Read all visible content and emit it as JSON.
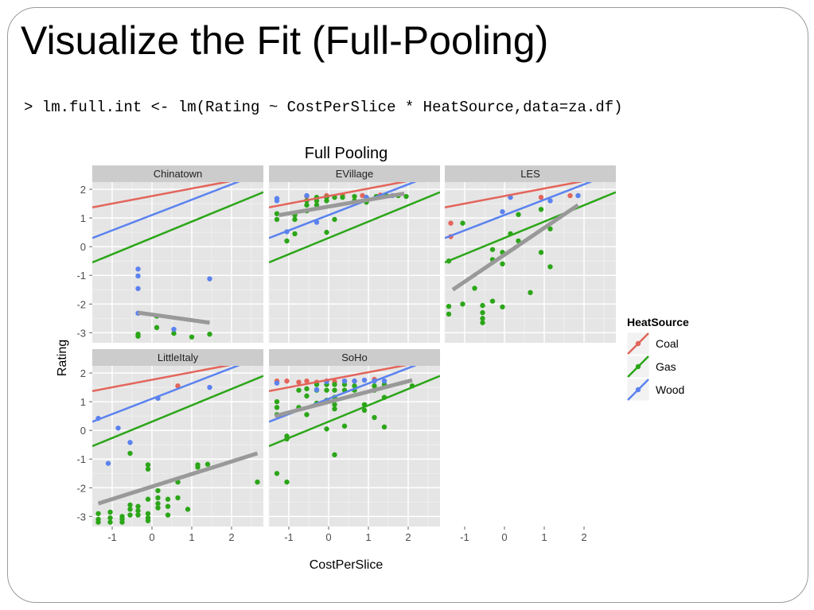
{
  "slide": {
    "title": "Visualize the Fit (Full-Pooling)",
    "code": "> lm.full.int <- lm(Rating ~ CostPerSlice * HeatSource,data=za.df)"
  },
  "chart_data": {
    "type": "scatter",
    "title": "Full Pooling",
    "xlabel": "CostPerSlice",
    "ylabel": "Rating",
    "xlim": [
      -1.5,
      2.8
    ],
    "ylim": [
      -3.35,
      2.25
    ],
    "x_ticks": [
      -1,
      0,
      1,
      2
    ],
    "y_ticks": [
      -3,
      -2,
      -1,
      0,
      1,
      2
    ],
    "grid": true,
    "legend": {
      "title": "HeatSource",
      "position": "right",
      "entries": [
        {
          "name": "Coal",
          "color": "#e3655b"
        },
        {
          "name": "Gas",
          "color": "#2ca619"
        },
        {
          "name": "Wood",
          "color": "#5b82ef"
        }
      ]
    },
    "pooled_lines": [
      {
        "series": "Coal",
        "color": "#e3655b",
        "x": [
          -1.5,
          2.8
        ],
        "y": [
          1.37,
          2.5
        ]
      },
      {
        "series": "Gas",
        "color": "#2ca619",
        "x": [
          -1.5,
          2.8
        ],
        "y": [
          -0.55,
          1.9
        ]
      },
      {
        "series": "Wood",
        "color": "#5b82ef",
        "x": [
          -1.5,
          2.8
        ],
        "y": [
          0.3,
          2.6
        ]
      }
    ],
    "fit_color": "#999999",
    "panels": [
      {
        "name": "Chinatown",
        "fit": {
          "x": [
            -0.35,
            1.45
          ],
          "y": [
            -2.3,
            -2.65
          ]
        },
        "points": {
          "Coal": [],
          "Gas": [
            [
              -0.35,
              -3.05
            ],
            [
              -0.35,
              -3.12
            ],
            [
              0.12,
              -2.42
            ],
            [
              0.12,
              -2.82
            ],
            [
              0.55,
              -3.02
            ],
            [
              1.0,
              -3.15
            ],
            [
              1.45,
              -3.05
            ]
          ],
          "Wood": [
            [
              -0.35,
              -0.78
            ],
            [
              -0.35,
              -1.02
            ],
            [
              -0.35,
              -1.46
            ],
            [
              -0.35,
              -2.32
            ],
            [
              0.55,
              -2.88
            ],
            [
              1.45,
              -1.12
            ]
          ]
        }
      },
      {
        "name": "EVillage",
        "fit": {
          "x": [
            -1.25,
            1.9
          ],
          "y": [
            1.1,
            1.85
          ]
        },
        "points": {
          "Coal": [
            [
              -0.55,
              1.75
            ],
            [
              -0.05,
              1.78
            ],
            [
              0.35,
              1.8
            ],
            [
              0.85,
              1.78
            ],
            [
              1.3,
              1.8
            ]
          ],
          "Gas": [
            [
              -1.3,
              0.95
            ],
            [
              -1.3,
              1.15
            ],
            [
              -1.05,
              0.2
            ],
            [
              -0.85,
              0.45
            ],
            [
              -0.85,
              0.95
            ],
            [
              -0.85,
              1.1
            ],
            [
              -0.55,
              1.25
            ],
            [
              -0.55,
              1.45
            ],
            [
              -0.55,
              1.6
            ],
            [
              -0.3,
              1.45
            ],
            [
              -0.3,
              1.6
            ],
            [
              -0.3,
              1.72
            ],
            [
              -0.05,
              0.5
            ],
            [
              -0.05,
              1.6
            ],
            [
              -0.05,
              1.72
            ],
            [
              0.15,
              0.95
            ],
            [
              0.15,
              1.72
            ],
            [
              0.35,
              1.72
            ],
            [
              0.65,
              1.75
            ],
            [
              0.65,
              1.6
            ],
            [
              0.95,
              1.55
            ],
            [
              0.95,
              1.72
            ],
            [
              1.2,
              1.75
            ],
            [
              1.45,
              1.78
            ],
            [
              1.75,
              1.78
            ],
            [
              1.95,
              1.75
            ]
          ],
          "Wood": [
            [
              -1.3,
              1.6
            ],
            [
              -1.3,
              1.68
            ],
            [
              -1.05,
              0.52
            ],
            [
              -0.55,
              1.78
            ],
            [
              -0.3,
              0.85
            ],
            [
              0.95,
              1.72
            ],
            [
              1.6,
              1.78
            ]
          ]
        }
      },
      {
        "name": "LES",
        "fit": {
          "x": [
            -1.3,
            1.85
          ],
          "y": [
            -1.5,
            1.45
          ]
        },
        "points": {
          "Coal": [
            [
              -1.35,
              0.82
            ],
            [
              -1.35,
              0.35
            ],
            [
              0.92,
              1.72
            ],
            [
              1.65,
              1.78
            ]
          ],
          "Gas": [
            [
              -1.4,
              -0.5
            ],
            [
              -1.4,
              -2.08
            ],
            [
              -1.4,
              -2.35
            ],
            [
              -1.05,
              0.82
            ],
            [
              -1.05,
              -2.0
            ],
            [
              -0.75,
              -1.45
            ],
            [
              -0.55,
              -2.05
            ],
            [
              -0.55,
              -2.3
            ],
            [
              -0.55,
              -2.5
            ],
            [
              -0.55,
              -2.65
            ],
            [
              -0.3,
              -0.1
            ],
            [
              -0.3,
              -0.45
            ],
            [
              -0.3,
              -1.9
            ],
            [
              -0.05,
              -0.2
            ],
            [
              -0.05,
              -0.6
            ],
            [
              -0.05,
              -2.1
            ],
            [
              0.15,
              0.45
            ],
            [
              0.35,
              1.12
            ],
            [
              0.35,
              0.2
            ],
            [
              0.65,
              -1.6
            ],
            [
              0.92,
              -0.2
            ],
            [
              0.92,
              1.3
            ],
            [
              1.15,
              0.62
            ],
            [
              1.15,
              -0.7
            ]
          ],
          "Wood": [
            [
              -0.05,
              1.22
            ],
            [
              0.15,
              1.72
            ],
            [
              1.15,
              1.6
            ],
            [
              1.85,
              1.78
            ]
          ]
        }
      },
      {
        "name": "LittleItaly",
        "fit": {
          "x": [
            -1.35,
            2.65
          ],
          "y": [
            -2.55,
            -0.8
          ]
        },
        "points": {
          "Coal": [
            [
              0.65,
              1.55
            ]
          ],
          "Gas": [
            [
              -1.35,
              -2.9
            ],
            [
              -1.35,
              -3.1
            ],
            [
              -1.35,
              -3.2
            ],
            [
              -1.05,
              -2.85
            ],
            [
              -1.05,
              -3.05
            ],
            [
              -1.05,
              -3.2
            ],
            [
              -0.75,
              -3.0
            ],
            [
              -0.75,
              -3.1
            ],
            [
              -0.75,
              -3.2
            ],
            [
              -0.55,
              -0.8
            ],
            [
              -0.55,
              -2.6
            ],
            [
              -0.55,
              -2.75
            ],
            [
              -0.55,
              -2.95
            ],
            [
              -0.35,
              -2.65
            ],
            [
              -0.35,
              -2.8
            ],
            [
              -0.35,
              -2.95
            ],
            [
              -0.1,
              -1.2
            ],
            [
              -0.1,
              -1.35
            ],
            [
              -0.1,
              -2.4
            ],
            [
              -0.1,
              -2.9
            ],
            [
              -0.1,
              -3.05
            ],
            [
              -0.1,
              -3.15
            ],
            [
              0.15,
              -2.1
            ],
            [
              0.15,
              -2.35
            ],
            [
              0.15,
              -2.55
            ],
            [
              0.15,
              -2.7
            ],
            [
              0.4,
              -2.4
            ],
            [
              0.4,
              -2.65
            ],
            [
              0.4,
              -2.95
            ],
            [
              0.65,
              -1.8
            ],
            [
              0.65,
              -2.35
            ],
            [
              0.9,
              -2.75
            ],
            [
              1.15,
              -1.2
            ],
            [
              1.15,
              -1.28
            ],
            [
              1.4,
              -1.18
            ],
            [
              2.65,
              -1.8
            ]
          ],
          "Wood": [
            [
              -1.35,
              0.42
            ],
            [
              -1.1,
              -1.15
            ],
            [
              -0.85,
              0.08
            ],
            [
              -0.55,
              -0.42
            ],
            [
              0.15,
              1.12
            ],
            [
              1.45,
              1.5
            ]
          ]
        }
      },
      {
        "name": "SoHo",
        "fit": {
          "x": [
            -1.35,
            2.1
          ],
          "y": [
            0.5,
            1.75
          ]
        },
        "points": {
          "Coal": [
            [
              -1.3,
              1.72
            ],
            [
              -1.05,
              1.72
            ],
            [
              -0.75,
              1.68
            ],
            [
              -0.55,
              1.72
            ],
            [
              -0.3,
              1.68
            ],
            [
              -0.05,
              1.72
            ],
            [
              0.15,
              1.7
            ],
            [
              0.4,
              1.72
            ],
            [
              0.65,
              1.72
            ],
            [
              1.15,
              1.78
            ]
          ],
          "Gas": [
            [
              -1.3,
              0.55
            ],
            [
              -1.3,
              0.8
            ],
            [
              -1.3,
              1.0
            ],
            [
              -1.3,
              -1.5
            ],
            [
              -1.05,
              -0.2
            ],
            [
              -1.05,
              -0.3
            ],
            [
              -1.05,
              -1.8
            ],
            [
              -0.75,
              0.8
            ],
            [
              -0.75,
              1.4
            ],
            [
              -0.55,
              0.55
            ],
            [
              -0.55,
              1.2
            ],
            [
              -0.55,
              1.45
            ],
            [
              -0.3,
              1.4
            ],
            [
              -0.3,
              1.6
            ],
            [
              -0.3,
              0.95
            ],
            [
              -0.05,
              0.05
            ],
            [
              -0.05,
              1.05
            ],
            [
              -0.05,
              1.4
            ],
            [
              -0.05,
              1.6
            ],
            [
              0.15,
              0.75
            ],
            [
              0.15,
              0.9
            ],
            [
              0.15,
              1.15
            ],
            [
              0.15,
              1.4
            ],
            [
              0.15,
              1.6
            ],
            [
              0.15,
              -0.85
            ],
            [
              0.4,
              1.4
            ],
            [
              0.4,
              1.6
            ],
            [
              0.4,
              0.15
            ],
            [
              0.65,
              1.4
            ],
            [
              0.65,
              1.55
            ],
            [
              0.9,
              0.9
            ],
            [
              0.9,
              0.7
            ],
            [
              1.15,
              0.45
            ],
            [
              1.15,
              1.4
            ],
            [
              1.15,
              1.55
            ],
            [
              1.4,
              1.15
            ],
            [
              1.4,
              0.12
            ],
            [
              1.4,
              1.6
            ],
            [
              2.1,
              1.55
            ]
          ],
          "Wood": [
            [
              -1.3,
              1.65
            ],
            [
              -0.3,
              1.42
            ],
            [
              -0.05,
              1.7
            ],
            [
              0.4,
              1.72
            ],
            [
              0.65,
              1.72
            ],
            [
              0.9,
              1.75
            ],
            [
              1.15,
              1.72
            ],
            [
              1.4,
              1.72
            ]
          ]
        }
      }
    ]
  }
}
